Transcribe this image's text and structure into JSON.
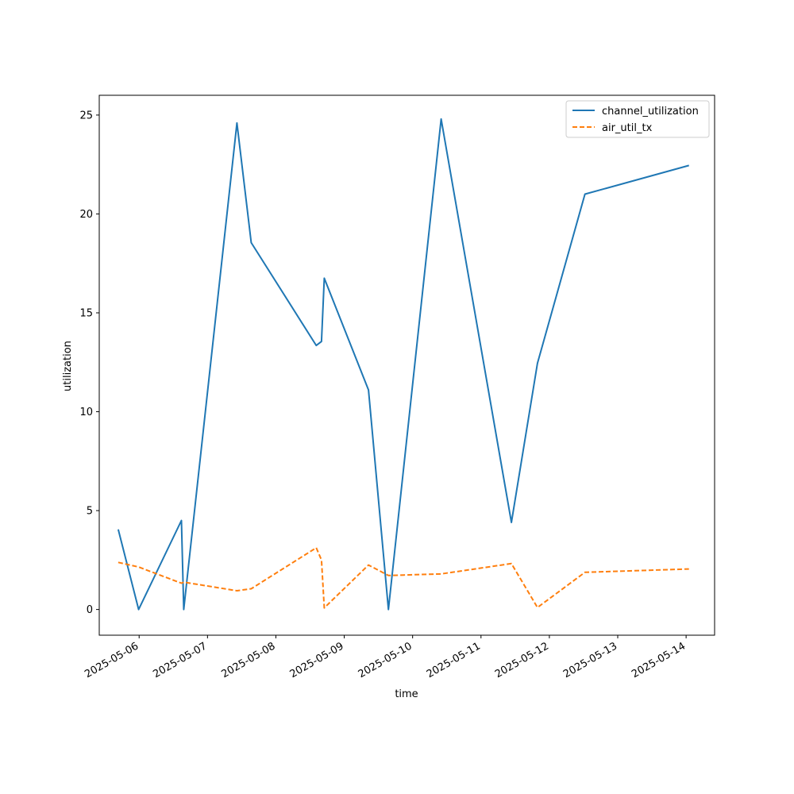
{
  "chart_data": {
    "type": "line",
    "title": "",
    "xlabel": "time",
    "ylabel": "utilization",
    "x_ticks": [
      "2025-05-06",
      "2025-05-07",
      "2025-05-08",
      "2025-05-09",
      "2025-05-10",
      "2025-05-11",
      "2025-05-12",
      "2025-05-13",
      "2025-05-14"
    ],
    "y_ticks": [
      0,
      5,
      10,
      15,
      20,
      25
    ],
    "xlim": [
      "2025-05-05 10:00",
      "2025-05-14 10:00"
    ],
    "ylim": [
      -1.3,
      26.0
    ],
    "grid": false,
    "legend_position": "top-right",
    "series": [
      {
        "name": "channel_utilization",
        "color": "#1f77b4",
        "style": "solid",
        "points": [
          {
            "x": "2025-05-05 16:40",
            "y": 4.05
          },
          {
            "x": "2025-05-05 23:50",
            "y": 0.0
          },
          {
            "x": "2025-05-06 14:50",
            "y": 4.5
          },
          {
            "x": "2025-05-06 15:40",
            "y": 0.0
          },
          {
            "x": "2025-05-07 10:20",
            "y": 24.6
          },
          {
            "x": "2025-05-07 15:20",
            "y": 18.55
          },
          {
            "x": "2025-05-08 14:10",
            "y": 13.35
          },
          {
            "x": "2025-05-08 16:00",
            "y": 13.55
          },
          {
            "x": "2025-05-08 17:00",
            "y": 16.75
          },
          {
            "x": "2025-05-09 08:30",
            "y": 11.1
          },
          {
            "x": "2025-05-09 15:30",
            "y": 0.0
          },
          {
            "x": "2025-05-10 10:00",
            "y": 24.8
          },
          {
            "x": "2025-05-11 10:40",
            "y": 4.4
          },
          {
            "x": "2025-05-11 19:50",
            "y": 12.45
          },
          {
            "x": "2025-05-12 12:30",
            "y": 21.0
          },
          {
            "x": "2025-05-14 01:00",
            "y": 22.45
          }
        ]
      },
      {
        "name": "air_util_tx",
        "color": "#ff7f0e",
        "style": "dashed",
        "points": [
          {
            "x": "2025-05-05 16:40",
            "y": 2.38
          },
          {
            "x": "2025-05-05 23:50",
            "y": 2.15
          },
          {
            "x": "2025-05-06 14:50",
            "y": 1.33
          },
          {
            "x": "2025-05-06 15:40",
            "y": 1.38
          },
          {
            "x": "2025-05-07 10:20",
            "y": 0.95
          },
          {
            "x": "2025-05-07 15:20",
            "y": 1.05
          },
          {
            "x": "2025-05-08 14:10",
            "y": 3.12
          },
          {
            "x": "2025-05-08 16:00",
            "y": 2.5
          },
          {
            "x": "2025-05-08 17:00",
            "y": 0.08
          },
          {
            "x": "2025-05-09 08:30",
            "y": 2.25
          },
          {
            "x": "2025-05-09 15:30",
            "y": 1.72
          },
          {
            "x": "2025-05-10 10:00",
            "y": 1.8
          },
          {
            "x": "2025-05-11 10:40",
            "y": 2.32
          },
          {
            "x": "2025-05-11 19:50",
            "y": 0.1
          },
          {
            "x": "2025-05-12 12:30",
            "y": 1.88
          },
          {
            "x": "2025-05-14 01:00",
            "y": 2.05
          }
        ]
      }
    ]
  }
}
